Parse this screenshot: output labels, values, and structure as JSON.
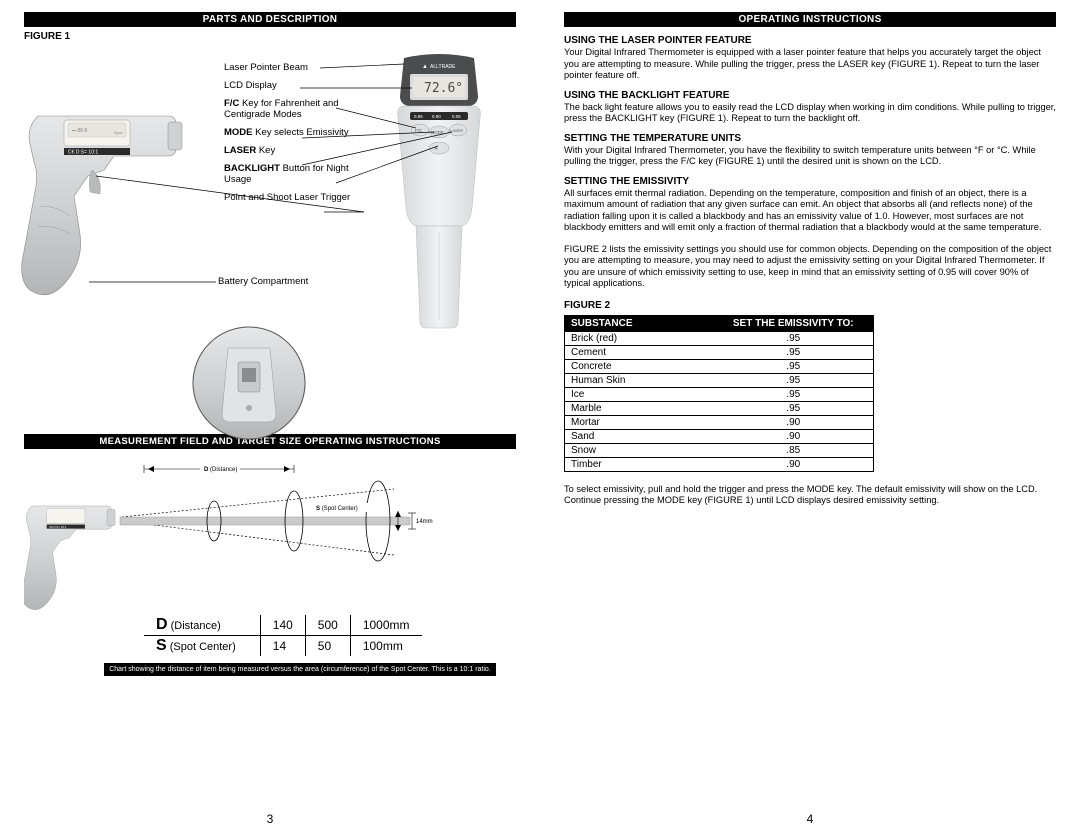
{
  "left": {
    "header1": "PARTS AND DESCRIPTION",
    "figure1": "FIGURE 1",
    "labels": {
      "laser_pointer": "Laser Pointer Beam",
      "lcd": "LCD Display",
      "fc_b": "F/C",
      "fc_rest": " Key for Fahrenheit and Centigrade Modes",
      "mode_b": "MODE",
      "mode_rest": " Key selects Emissivity",
      "laser_b": "LASER",
      "laser_rest": " Key",
      "backlight_b": "BACKLIGHT",
      "backlight_rest": " Button for Night Usage",
      "pns": "Point and Shoot Laser Trigger",
      "battery": "Battery Compartment"
    },
    "lcd_reading": "72.6°",
    "brand": "ALLTRADE",
    "mode_bar": {
      "a": "0.95",
      "b": "0.90",
      "c": "0.05"
    },
    "header2": "MEASUREMENT FIELD AND TARGET SIZE OPERATING INSTRUCTIONS",
    "ds": {
      "d_b": "D",
      "d_l": " (Distance)",
      "d1": "140",
      "d2": "500",
      "d3": "1000mm",
      "s_b": "S",
      "s_l": " (Spot Center)",
      "s1": "14",
      "s2": "50",
      "s3": "100mm"
    },
    "dim_d": "D",
    "dim_d_paren": "(Distance)",
    "dim_s": "S",
    "dim_s_paren": "(Spot Center)",
    "dim_14": "14mm",
    "caption": "Chart showing the distance of item being measured versus the area (circumference) of the Spot Center. This is a 10:1 ratio.",
    "pagenum": "3"
  },
  "right": {
    "header": "OPERATING INSTRUCTIONS",
    "s1h": "USING THE LASER POINTER FEATURE",
    "s1": "Your Digital Infrared Thermometer is equipped with a laser pointer feature that helps you accurately target the object you are attempting to measure. While pulling the trigger, press the LASER key (FIGURE 1). Repeat to turn the laser pointer feature off.",
    "s2h": "USING THE BACKLIGHT FEATURE",
    "s2": "The back light feature allows you to easily read the LCD display when working in dim conditions. While pulling to trigger, press the BACKLIGHT key (FIGURE 1). Repeat to turn the backlight off.",
    "s3h": "SETTING THE TEMPERATURE UNITS",
    "s3": "With your Digital Infrared Thermometer, you have the flexibility to switch temperature units between °F or °C. While pulling the trigger, press the F/C key (FIGURE 1) until the desired unit is shown on the LCD.",
    "s4h": "SETTING THE EMISSIVITY",
    "s4a": "All surfaces emit thermal radiation. Depending on the temperature, composition and finish of an object, there is a maximum amount of radiation that any given surface can emit. An object that absorbs all (and reflects none) of the radiation falling upon it is called a blackbody and has an emissivity value of 1.0. However, most surfaces are not blackbody emitters and will emit only a fraction of thermal radiation that a blackbody would at the same temperature.",
    "s4b": "FIGURE 2 lists the emissivity settings you should use for common objects. Depending on the composition of the object you are attempting to measure, you may need to adjust the emissivity setting on your Digital Infrared Thermometer. If you are unsure of which emissivity setting to use, keep in mind that an emissivity setting of 0.95 will cover 90% of typical applications.",
    "figure2": "FIGURE 2",
    "th1": "SUBSTANCE",
    "th2": "SET THE EMISSIVITY TO:",
    "rows": [
      {
        "s": "Brick (red)",
        "e": ".95"
      },
      {
        "s": "Cement",
        "e": ".95"
      },
      {
        "s": "Concrete",
        "e": ".95"
      },
      {
        "s": "Human Skin",
        "e": ".95"
      },
      {
        "s": "Ice",
        "e": ".95"
      },
      {
        "s": "Marble",
        "e": ".95"
      },
      {
        "s": "Mortar",
        "e": ".90"
      },
      {
        "s": "Sand",
        "e": ".90"
      },
      {
        "s": "Snow",
        "e": ".85"
      },
      {
        "s": "Timber",
        "e": ".90"
      }
    ],
    "s5": "To select emissivity, pull and hold the trigger and press the MODE key. The default emissivity will show on the LCD. Continue pressing the MODE key (FIGURE 1) until LCD displays desired emissivity setting.",
    "pagenum": "4"
  },
  "colors": {
    "gun_light": "#d6d7d9",
    "gun_mid": "#bfc1c3",
    "gun_dark": "#9a9c9e",
    "gun_shadow": "#7a7c7e",
    "lcd_bg": "#e9e6df",
    "device_body": "#e9eaec",
    "device_dark": "#4b4c4e"
  }
}
